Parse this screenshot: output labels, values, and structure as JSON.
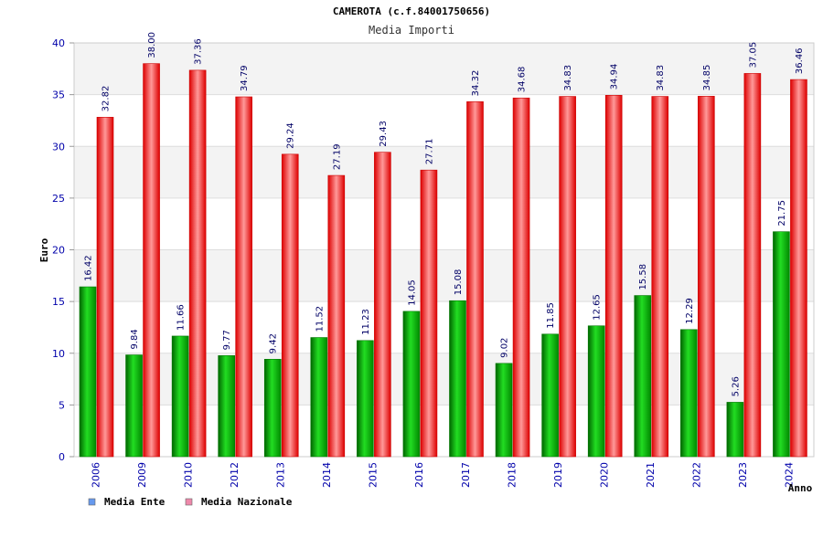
{
  "chart_data": {
    "type": "bar",
    "title": "CAMEROTA (c.f.84001750656)",
    "subtitle": "Media Importi",
    "ylabel": "Euro",
    "xlabel": "Anno",
    "ylim": [
      0,
      40
    ],
    "yticks": [
      "0",
      "5",
      "10",
      "15",
      "20",
      "25",
      "30",
      "35",
      "40"
    ],
    "grid": "horizontal, alternating bands",
    "legend_position": "bottom-left",
    "categories": [
      "2006",
      "2009",
      "2010",
      "2012",
      "2013",
      "2014",
      "2015",
      "2016",
      "2017",
      "2018",
      "2019",
      "2020",
      "2021",
      "2022",
      "2023",
      "2024"
    ],
    "series": [
      {
        "name": "Media Ente",
        "color": "#00aa00",
        "legend_color": "#6699ee",
        "values": [
          16.42,
          9.84,
          11.66,
          9.77,
          9.42,
          11.52,
          11.23,
          14.05,
          15.08,
          9.02,
          11.85,
          12.65,
          15.58,
          12.29,
          5.26,
          21.75
        ],
        "labels": [
          "16.42",
          "9.84",
          "11.66",
          "9.77",
          "9.42",
          "11.52",
          "11.23",
          "14.05",
          "15.08",
          "9.02",
          "11.85",
          "12.65",
          "15.58",
          "12.29",
          "5.26",
          "21.75"
        ]
      },
      {
        "name": "Media Nazionale",
        "color": "#ee0000",
        "legend_color": "#ee88aa",
        "values": [
          32.82,
          38.0,
          37.36,
          34.79,
          29.24,
          27.19,
          29.43,
          27.71,
          34.32,
          34.68,
          34.83,
          34.94,
          34.83,
          34.85,
          37.05,
          36.46
        ],
        "labels": [
          "32.82",
          "38.00",
          "37.36",
          "34.79",
          "29.24",
          "27.19",
          "29.43",
          "27.71",
          "34.32",
          "34.68",
          "34.83",
          "34.94",
          "34.83",
          "34.85",
          "37.05",
          "36.46"
        ]
      }
    ]
  }
}
